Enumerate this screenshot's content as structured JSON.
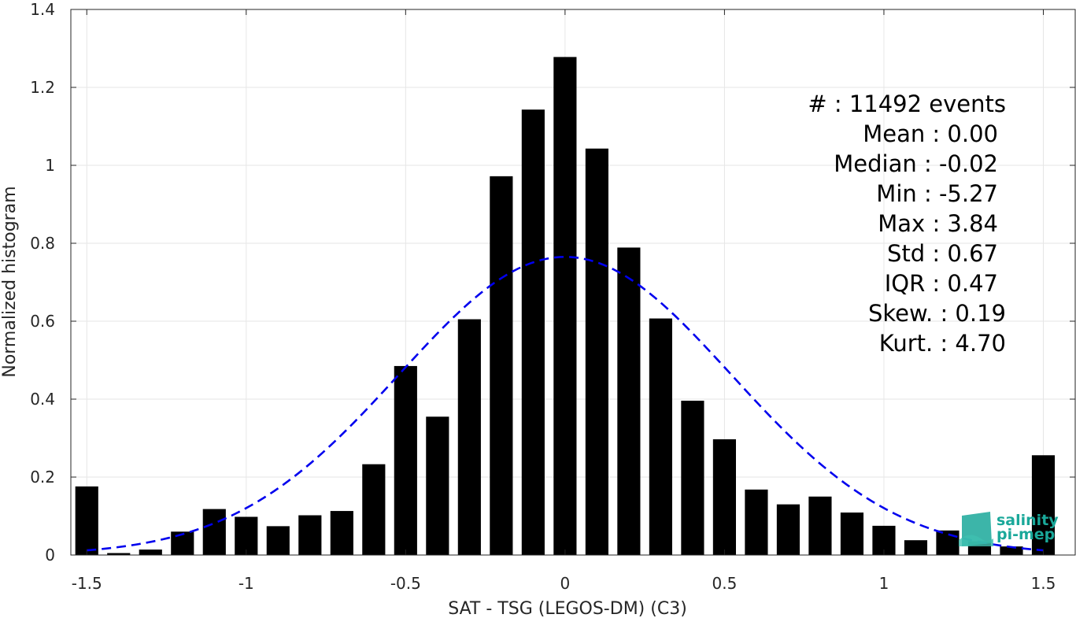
{
  "chart_data": {
    "type": "bar",
    "xlabel": "SAT - TSG (LEGOS-DM) (C3)",
    "ylabel": "Normalized histogram",
    "xlim": [
      -1.55,
      1.6
    ],
    "ylim": [
      0,
      1.4
    ],
    "grid": true,
    "xticks": [
      -1.5,
      -1,
      -0.5,
      0,
      0.5,
      1,
      1.5
    ],
    "xtick_labels": [
      "-1.5",
      "-1",
      "-0.5",
      "0",
      "0.5",
      "1",
      "1.5"
    ],
    "yticks": [
      0,
      0.2,
      0.4,
      0.6,
      0.8,
      1,
      1.2,
      1.4
    ],
    "ytick_labels": [
      "0",
      "0.2",
      "0.4",
      "0.6",
      "0.8",
      "1",
      "1.2",
      "1.4"
    ],
    "bin_width": 0.1,
    "bar_color": "#000000",
    "bars": [
      {
        "x": -1.5,
        "y": 0.176
      },
      {
        "x": -1.4,
        "y": 0.005
      },
      {
        "x": -1.3,
        "y": 0.014
      },
      {
        "x": -1.2,
        "y": 0.06
      },
      {
        "x": -1.1,
        "y": 0.118
      },
      {
        "x": -1.0,
        "y": 0.098
      },
      {
        "x": -0.9,
        "y": 0.074
      },
      {
        "x": -0.8,
        "y": 0.102
      },
      {
        "x": -0.7,
        "y": 0.113
      },
      {
        "x": -0.6,
        "y": 0.233
      },
      {
        "x": -0.5,
        "y": 0.485
      },
      {
        "x": -0.4,
        "y": 0.355
      },
      {
        "x": -0.3,
        "y": 0.605
      },
      {
        "x": -0.2,
        "y": 0.972
      },
      {
        "x": -0.1,
        "y": 1.143
      },
      {
        "x": 0.0,
        "y": 1.278
      },
      {
        "x": 0.1,
        "y": 1.043
      },
      {
        "x": 0.2,
        "y": 0.789
      },
      {
        "x": 0.3,
        "y": 0.607
      },
      {
        "x": 0.4,
        "y": 0.396
      },
      {
        "x": 0.5,
        "y": 0.297
      },
      {
        "x": 0.6,
        "y": 0.168
      },
      {
        "x": 0.7,
        "y": 0.13
      },
      {
        "x": 0.8,
        "y": 0.15
      },
      {
        "x": 0.9,
        "y": 0.109
      },
      {
        "x": 1.0,
        "y": 0.075
      },
      {
        "x": 1.1,
        "y": 0.038
      },
      {
        "x": 1.2,
        "y": 0.063
      },
      {
        "x": 1.3,
        "y": 0.035
      },
      {
        "x": 1.4,
        "y": 0.022
      },
      {
        "x": 1.5,
        "y": 0.256
      }
    ],
    "fit_curve": {
      "type": "gaussian",
      "mean": 0.0,
      "peak": 0.765,
      "sigma": 0.52,
      "x_range": [
        -1.5,
        1.5
      ],
      "color": "#0000ee",
      "style": "dashed"
    },
    "annotation_lines": [
      "#  : 11492 events",
      "Mean : 0.00",
      "Median : -0.02",
      "Min : -5.27",
      "Max : 3.84",
      "Std : 0.67",
      "IQR : 0.47",
      "Skew. : 0.19",
      "Kurt. : 4.70"
    ]
  },
  "logo": {
    "line1": "salinity",
    "line2": "pi-mep",
    "color": "#1aa89a"
  }
}
